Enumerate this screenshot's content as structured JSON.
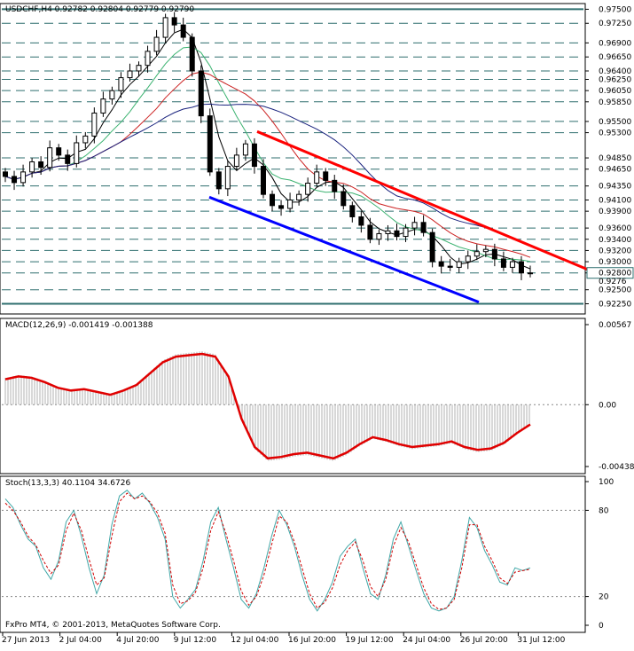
{
  "chart_data": [
    {
      "type": "candlestick",
      "symbol_line": "USDCHF,H4  0.92782 0.92804 0.92779 0.92790",
      "ylim": [
        0.921,
        0.9757
      ],
      "y_ticks": [
        "0.97500",
        "0.97250",
        "0.96900",
        "0.96650",
        "0.96400",
        "0.96250",
        "0.96050",
        "0.95850",
        "0.95500",
        "0.95300",
        "0.94850",
        "0.94650",
        "0.94350",
        "0.94100",
        "0.93900",
        "0.93600",
        "0.93400",
        "0.93200",
        "0.93000",
        "0.92800",
        "0.92500",
        "0.92250"
      ],
      "x_ticks": [
        "27 Jun 2013",
        "2 Jul 04:00",
        "4 Jul 20:00",
        "9 Jul 12:00",
        "12 Jul 04:00",
        "16 Jul 20:00",
        "19 Jul 12:00",
        "24 Jul 04:00",
        "26 Jul 20:00",
        "31 Jul 12:00"
      ],
      "close_series": [
        0.9452,
        0.9441,
        0.946,
        0.9478,
        0.9468,
        0.9503,
        0.949,
        0.9475,
        0.9512,
        0.9524,
        0.9565,
        0.959,
        0.9605,
        0.9628,
        0.964,
        0.965,
        0.9675,
        0.97,
        0.9735,
        0.9722,
        0.97,
        0.964,
        0.956,
        0.946,
        0.943,
        0.947,
        0.949,
        0.951,
        0.947,
        0.942,
        0.94,
        0.9395,
        0.941,
        0.942,
        0.944,
        0.946,
        0.9445,
        0.9425,
        0.94,
        0.938,
        0.9365,
        0.934,
        0.935,
        0.9355,
        0.9345,
        0.936,
        0.937,
        0.9352,
        0.93,
        0.9292,
        0.929,
        0.93,
        0.931,
        0.9318,
        0.9322,
        0.9305,
        0.929,
        0.93,
        0.928,
        0.9279
      ],
      "trendlines": [
        {
          "color": "#ff0000",
          "from": [
            "12 Jul 04:00",
            0.9532
          ],
          "to": [
            "2 Aug",
            0.928
          ]
        },
        {
          "color": "#0000ff",
          "from": [
            "11 Jul",
            0.9415
          ],
          "to": [
            "30 Jul",
            0.9228
          ]
        }
      ],
      "moving_averages": [
        {
          "color": "#000000",
          "period": "short"
        },
        {
          "color": "#3cb371",
          "period": "medium"
        },
        {
          "color": "#cc2222",
          "period": "long"
        },
        {
          "color": "#1a237e",
          "period": "longest"
        }
      ]
    },
    {
      "type": "line",
      "title": "MACD(12,26,9) -0.001419 -0.001388",
      "ylim": [
        -0.00438,
        0.00567
      ],
      "y_ticks": [
        "0.00567",
        "0.00",
        "-0.00438"
      ],
      "series": [
        {
          "values": [
            0.0018,
            0.002,
            0.0019,
            0.0016,
            0.0012,
            0.001,
            0.0011,
            0.0009,
            0.0007,
            0.001,
            0.0014,
            0.0022,
            0.003,
            0.0034,
            0.0035,
            0.0036,
            0.0034,
            0.002,
            -0.001,
            -0.003,
            -0.0038,
            -0.0037,
            -0.0035,
            -0.0034,
            -0.0036,
            -0.0038,
            -0.0034,
            -0.0028,
            -0.0023,
            -0.0025,
            -0.0028,
            -0.003,
            -0.0029,
            -0.0028,
            -0.0026,
            -0.003,
            -0.0032,
            -0.0031,
            -0.0027,
            -0.002,
            -0.0014
          ]
        }
      ]
    },
    {
      "type": "line",
      "title": "Stoch(13,3,3) 40.1104 34.6726",
      "ylim": [
        0,
        100
      ],
      "y_ticks": [
        "100",
        "80",
        "20",
        "0"
      ],
      "series": [
        {
          "values": [
            88,
            82,
            70,
            60,
            55,
            40,
            32,
            45,
            72,
            80,
            62,
            40,
            22,
            35,
            70,
            90,
            94,
            88,
            92,
            85,
            75,
            60,
            20,
            12,
            18,
            25,
            45,
            72,
            82,
            60,
            40,
            18,
            12,
            22,
            40,
            62,
            80,
            70,
            55,
            35,
            18,
            10,
            18,
            30,
            48,
            55,
            60,
            40,
            22,
            18,
            35,
            60,
            72,
            55,
            38,
            22,
            12,
            10,
            12,
            20,
            45,
            75,
            68,
            52,
            42,
            30,
            28,
            40,
            38,
            40
          ]
        },
        {
          "values": [
            85,
            80,
            72,
            62,
            56,
            45,
            36,
            42,
            66,
            78,
            66,
            46,
            28,
            33,
            62,
            86,
            92,
            88,
            90,
            86,
            78,
            64,
            28,
            15,
            17,
            23,
            40,
            66,
            79,
            64,
            45,
            24,
            14,
            20,
            35,
            56,
            76,
            72,
            58,
            40,
            22,
            12,
            16,
            26,
            42,
            52,
            58,
            45,
            27,
            20,
            32,
            55,
            68,
            58,
            42,
            26,
            15,
            11,
            12,
            18,
            40,
            70,
            70,
            55,
            45,
            33,
            29,
            37,
            38,
            39
          ]
        }
      ]
    }
  ],
  "price_labels": {
    "red_trend_end": "0.92800",
    "lower_partial": "0.9276"
  },
  "footer": {
    "copyright": "FxPro MT4, © 2001-2013, MetaQuotes Software Corp."
  },
  "colors": {
    "grid_dash": "#2f6f6f",
    "macd_histogram": "#b0b0b0",
    "macd_signal": "#e00000",
    "stoch_main": "#3fa7a7",
    "stoch_signal": "#d00000",
    "candle_up": "#ffffff",
    "candle_down": "#000000"
  }
}
